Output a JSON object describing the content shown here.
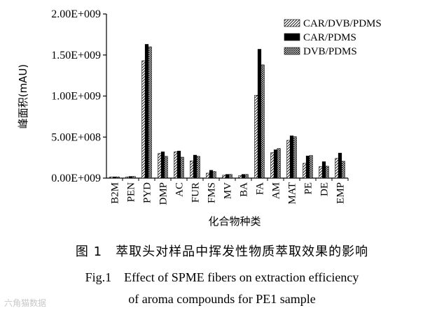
{
  "chart_data": {
    "type": "bar",
    "ylabel": "峰面积(mAU)",
    "xlabel": "化合物种类",
    "ylim": [
      0,
      2000000000
    ],
    "yticks": [
      "0.00E+009",
      "5.00E+008",
      "1.00E+009",
      "1.50E+009",
      "2.00E+009"
    ],
    "categories": [
      "B2M",
      "PEN",
      "PYD",
      "DMP",
      "AC",
      "FUR",
      "FMS",
      "MV",
      "BA",
      "FA",
      "AM",
      "MAT",
      "PE",
      "DE",
      "EMP"
    ],
    "legend_position": "top-right",
    "series": [
      {
        "name": "CAR/DVB/PDMS",
        "pattern": "diagonal-hatch",
        "values": [
          15000000,
          15000000,
          1430000000,
          300000000,
          320000000,
          210000000,
          60000000,
          35000000,
          30000000,
          1010000000,
          310000000,
          460000000,
          180000000,
          140000000,
          240000000
        ]
      },
      {
        "name": "CAR/PDMS",
        "pattern": "solid-black",
        "values": [
          15000000,
          20000000,
          1630000000,
          320000000,
          330000000,
          280000000,
          95000000,
          45000000,
          45000000,
          1570000000,
          345000000,
          515000000,
          270000000,
          200000000,
          305000000
        ]
      },
      {
        "name": "DVB/PDMS",
        "pattern": "crosshatch",
        "values": [
          15000000,
          20000000,
          1600000000,
          265000000,
          255000000,
          265000000,
          80000000,
          45000000,
          45000000,
          1380000000,
          360000000,
          505000000,
          275000000,
          145000000,
          205000000
        ]
      }
    ]
  },
  "caption": {
    "cn": "图 1　萃取头对样品中挥发性物质萃取效果的影响",
    "en_line1": "Fig.1　Effect of SPME fibers on extraction efficiency",
    "en_line2": "of aroma compounds for PE1 sample"
  },
  "watermark": "六角猫数据"
}
